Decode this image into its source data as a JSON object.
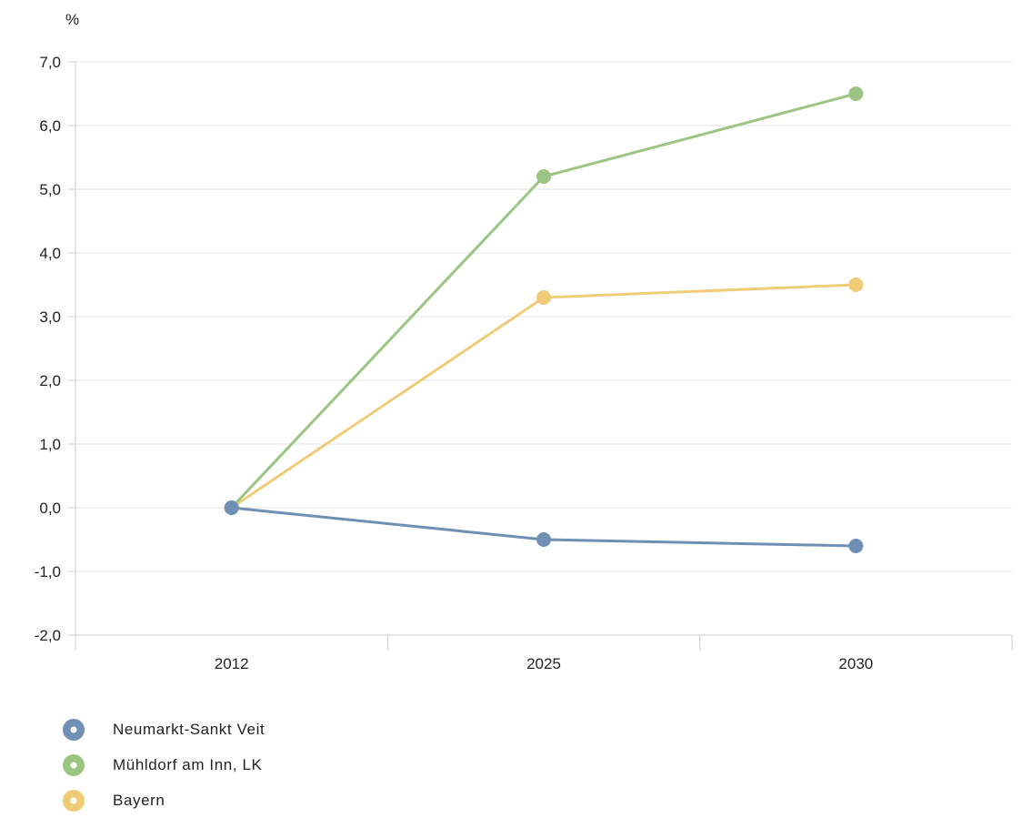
{
  "chart_data": {
    "type": "line",
    "ylabel": "%",
    "categories": [
      "2012",
      "2025",
      "2030"
    ],
    "ylim": [
      -2.0,
      7.0
    ],
    "yticks": [
      "7,0",
      "6,0",
      "5,0",
      "4,0",
      "3,0",
      "2,0",
      "1,0",
      "0,0",
      "-1,0",
      "-2,0"
    ],
    "ytick_values": [
      7,
      6,
      5,
      4,
      3,
      2,
      1,
      0,
      -1,
      -2
    ],
    "grid": true,
    "legend_position": "bottom-left",
    "series": [
      {
        "name": "Neumarkt-Sankt Veit",
        "color": "#6f8fb5",
        "values": [
          0.0,
          -0.5,
          -0.6
        ]
      },
      {
        "name": "Mühldorf am Inn, LK",
        "color": "#9cc482",
        "values": [
          0.0,
          5.2,
          6.5
        ]
      },
      {
        "name": "Bayern",
        "color": "#f0cc78",
        "values": [
          0.0,
          3.3,
          3.5
        ]
      }
    ]
  }
}
